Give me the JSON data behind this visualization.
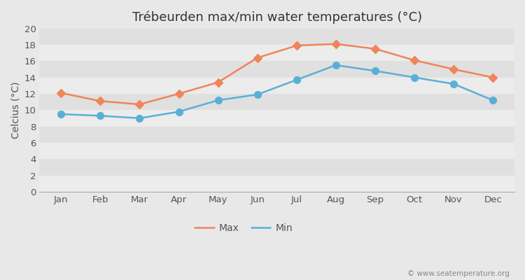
{
  "title": "Trébeurden max/min water temperatures (°C)",
  "ylabel": "Celcius (°C)",
  "months": [
    "Jan",
    "Feb",
    "Mar",
    "Apr",
    "May",
    "Jun",
    "Jul",
    "Aug",
    "Sep",
    "Oct",
    "Nov",
    "Dec"
  ],
  "max_temps": [
    12.1,
    11.1,
    10.7,
    12.0,
    13.4,
    16.4,
    17.9,
    18.1,
    17.5,
    16.1,
    15.0,
    14.0
  ],
  "min_temps": [
    9.5,
    9.3,
    9.0,
    9.8,
    11.2,
    11.9,
    13.7,
    15.5,
    14.8,
    14.0,
    13.2,
    11.2
  ],
  "max_color": "#f0845a",
  "min_color": "#5bafd6",
  "outer_bg_color": "#e8e8e8",
  "band_light": "#ececec",
  "band_dark": "#e0e0e0",
  "ylim": [
    0,
    20
  ],
  "yticks": [
    0,
    2,
    4,
    6,
    8,
    10,
    12,
    14,
    16,
    18,
    20
  ],
  "legend_labels": [
    "Max",
    "Min"
  ],
  "watermark": "© www.seatemperature.org",
  "title_fontsize": 13,
  "axis_label_fontsize": 10,
  "tick_fontsize": 9.5,
  "legend_fontsize": 10,
  "line_width": 1.8,
  "marker_max": "D",
  "marker_min": "o",
  "marker_size_max": 6,
  "marker_size_min": 7
}
